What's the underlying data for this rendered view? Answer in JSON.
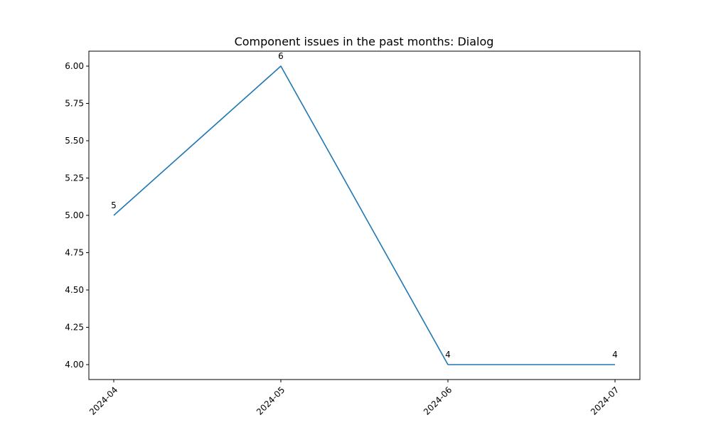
{
  "chart_data": {
    "type": "line",
    "title": "Component issues in the past months: Dialog",
    "xlabel": "",
    "ylabel": "",
    "categories": [
      "2024-04",
      "2024-05",
      "2024-06",
      "2024-07"
    ],
    "series": [
      {
        "values": [
          5,
          6,
          4,
          4
        ]
      }
    ],
    "ylim": [
      3.9,
      6.1
    ],
    "yticks": [
      4.0,
      4.25,
      4.5,
      4.75,
      5.0,
      5.25,
      5.5,
      5.75,
      6.0
    ],
    "ytick_labels": [
      "4.00",
      "4.25",
      "4.50",
      "4.75",
      "5.00",
      "5.25",
      "5.50",
      "5.75",
      "6.00"
    ],
    "data_labels": [
      "5",
      "6",
      "4",
      "4"
    ],
    "grid": false,
    "legend": "none",
    "line_color": "#1f77b4"
  }
}
